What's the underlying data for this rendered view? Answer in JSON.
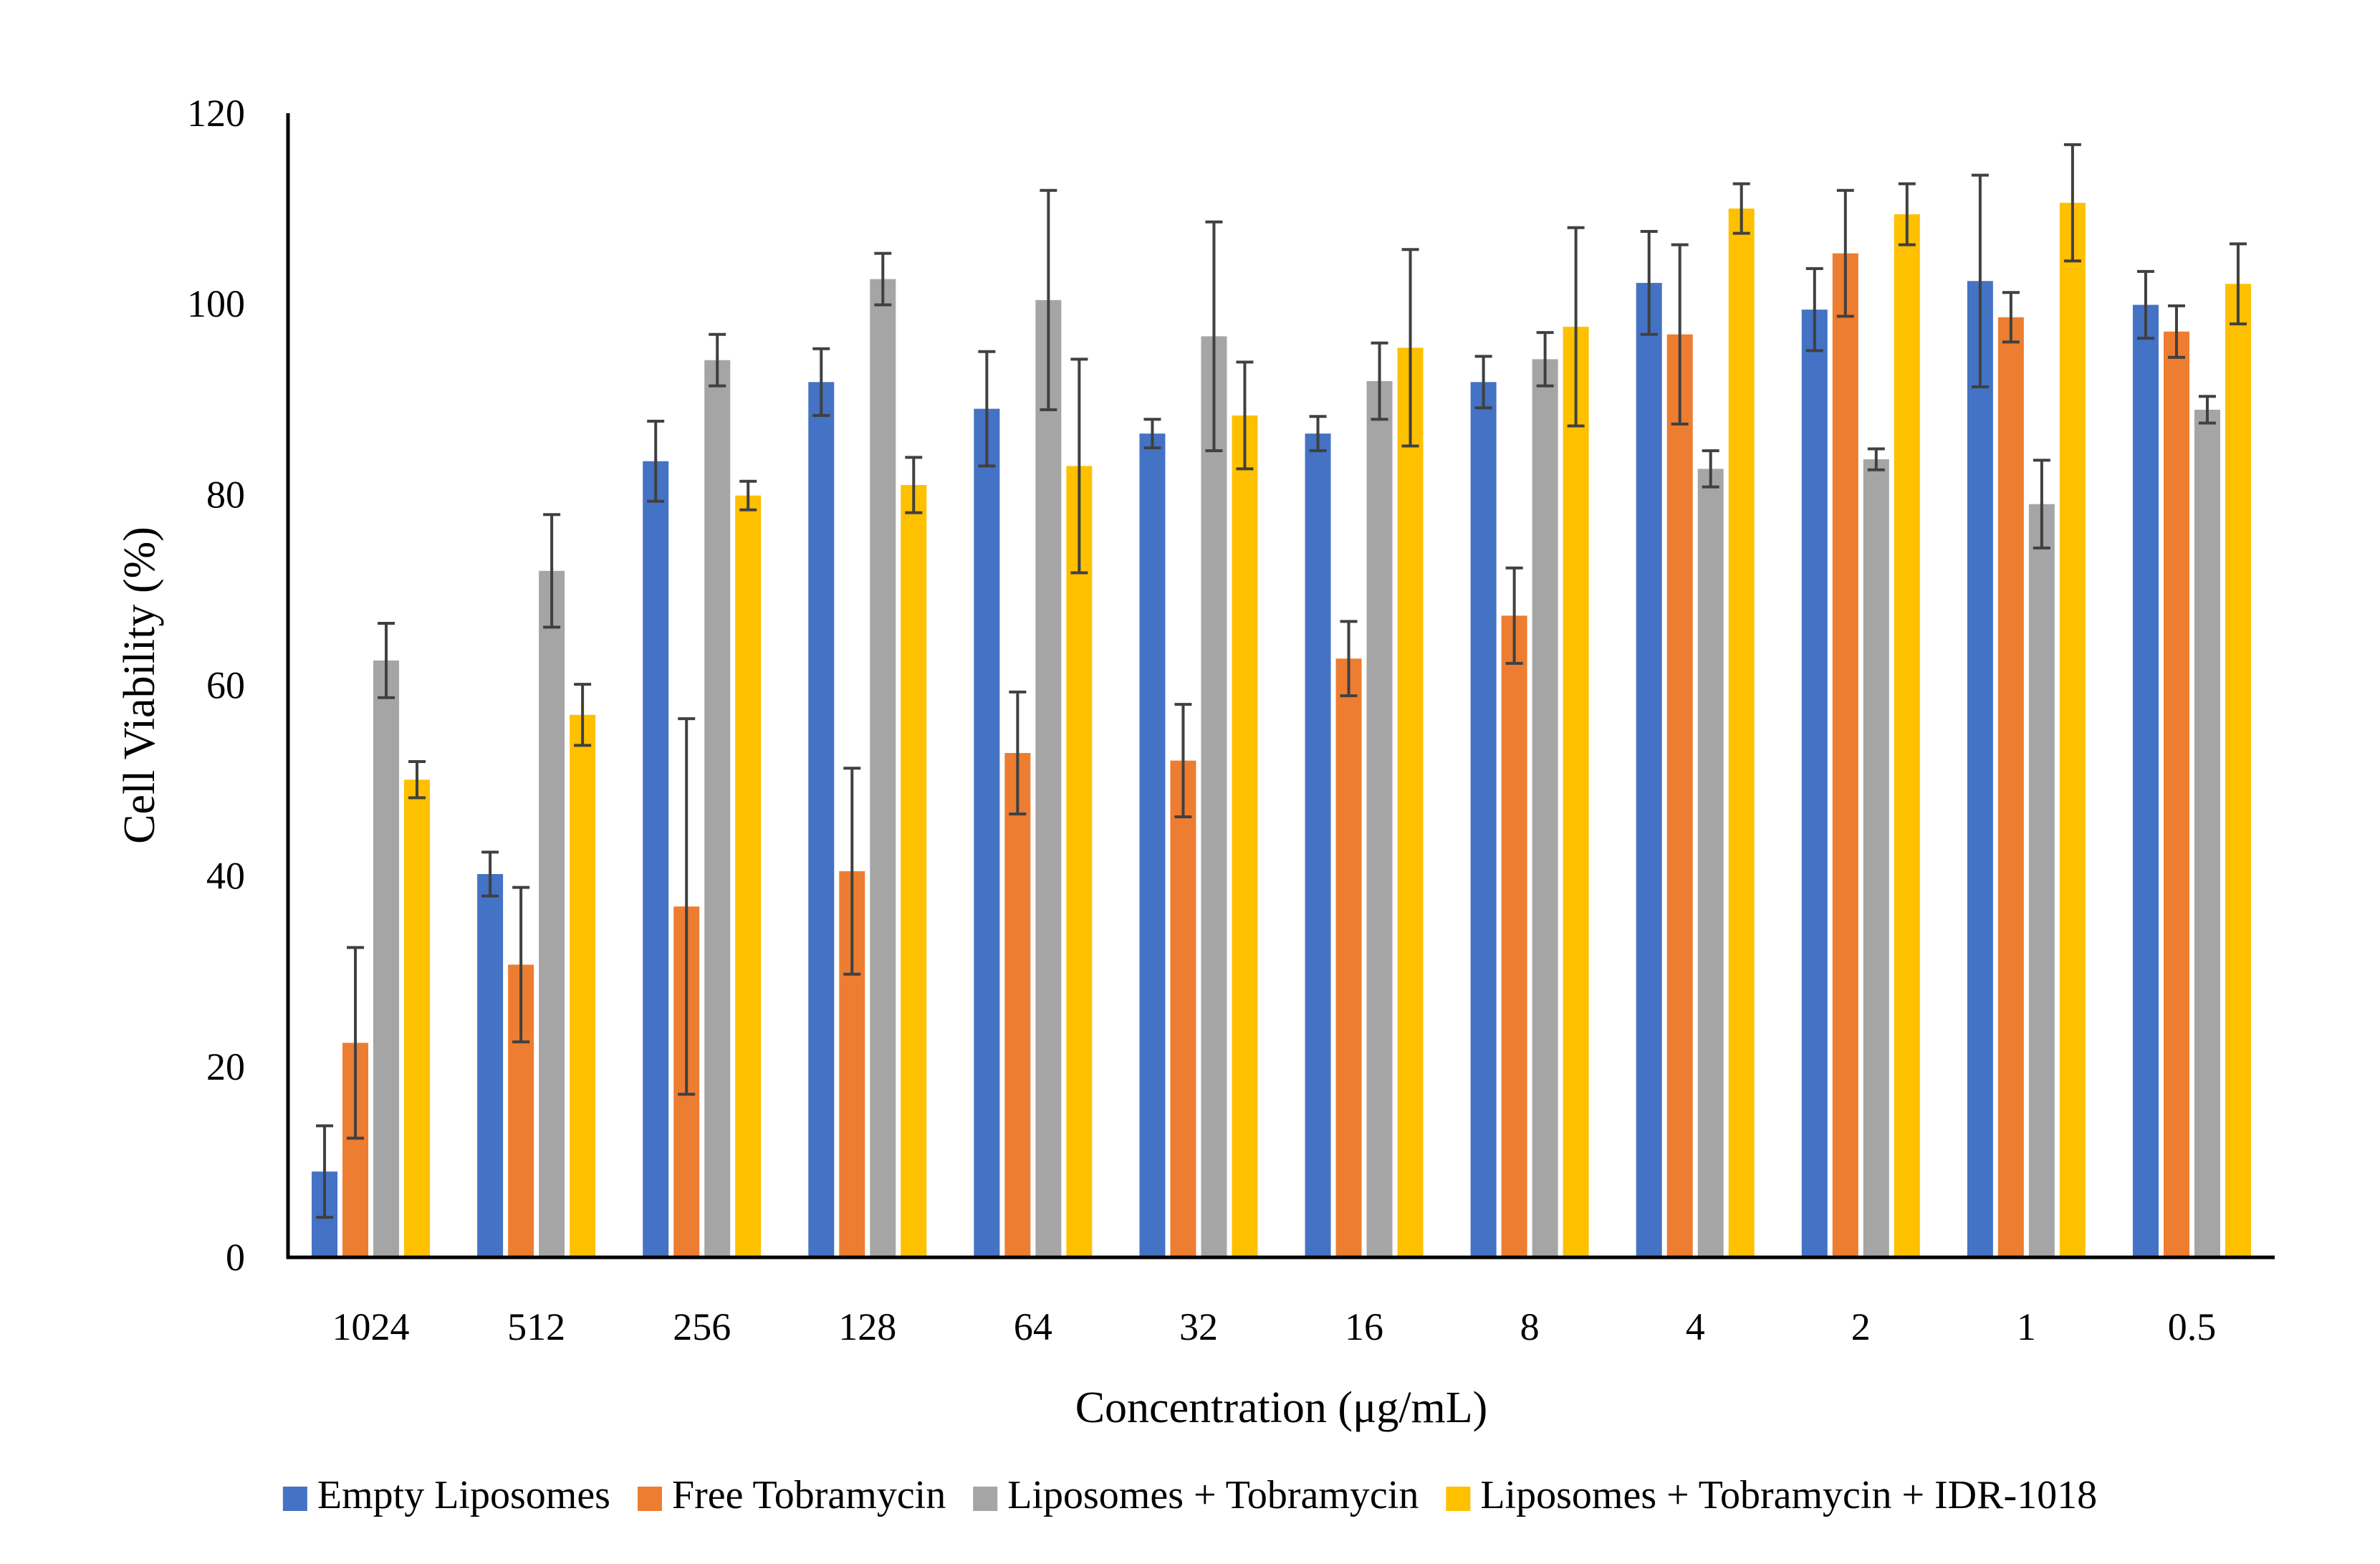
{
  "chart_data": {
    "type": "bar",
    "title": "",
    "xlabel": "Concentration (μg/mL)",
    "ylabel": "Cell Viability (%)",
    "ylim": [
      0,
      120
    ],
    "yticks": [
      0,
      20,
      40,
      60,
      80,
      100,
      120
    ],
    "ytick_labels": [
      "0",
      "20",
      "40",
      "60",
      "80",
      "100",
      "120"
    ],
    "categories": [
      "1024",
      "512",
      "256",
      "128",
      "64",
      "32",
      "16",
      "8",
      "4",
      "2",
      "1",
      "0.5"
    ],
    "legend_position": "bottom",
    "series": [
      {
        "name": "Empty Liposomes",
        "color": "#4472C4",
        "values": [
          9,
          40.2,
          83.5,
          91.8,
          89,
          86.4,
          86.4,
          91.8,
          102.2,
          99.4,
          102.4,
          99.9
        ],
        "errors": [
          4.8,
          2.3,
          4.2,
          3.5,
          6,
          1.5,
          1.8,
          2.7,
          5.4,
          4.3,
          11.1,
          3.5
        ]
      },
      {
        "name": "Free Tobramycin",
        "color": "#ED7D31",
        "values": [
          22.5,
          30.7,
          36.8,
          40.5,
          52.9,
          52.1,
          62.8,
          67.3,
          96.8,
          105.3,
          98.6,
          97.1
        ],
        "errors": [
          10,
          8.1,
          19.7,
          10.8,
          6.4,
          5.9,
          3.9,
          5,
          9.4,
          6.6,
          2.6,
          2.7
        ]
      },
      {
        "name": "Liposomes + Tobramycin",
        "color": "#A5A5A5",
        "values": [
          62.6,
          72,
          94.1,
          102.6,
          100.4,
          96.6,
          91.9,
          94.2,
          82.7,
          83.7,
          79,
          88.9
        ],
        "errors": [
          3.9,
          5.9,
          2.7,
          2.7,
          11.5,
          12,
          4,
          2.8,
          1.9,
          1.1,
          4.6,
          1.4
        ]
      },
      {
        "name": "Liposomes + Tobramycin + IDR-1018",
        "color": "#FFC000",
        "values": [
          50.1,
          56.9,
          79.9,
          81,
          83,
          88.3,
          95.4,
          97.6,
          110,
          109.4,
          110.6,
          102.1
        ],
        "errors": [
          1.9,
          3.2,
          1.5,
          2.9,
          11.2,
          5.6,
          10.3,
          10.4,
          2.6,
          3.2,
          6.1,
          4.2
        ]
      }
    ]
  }
}
